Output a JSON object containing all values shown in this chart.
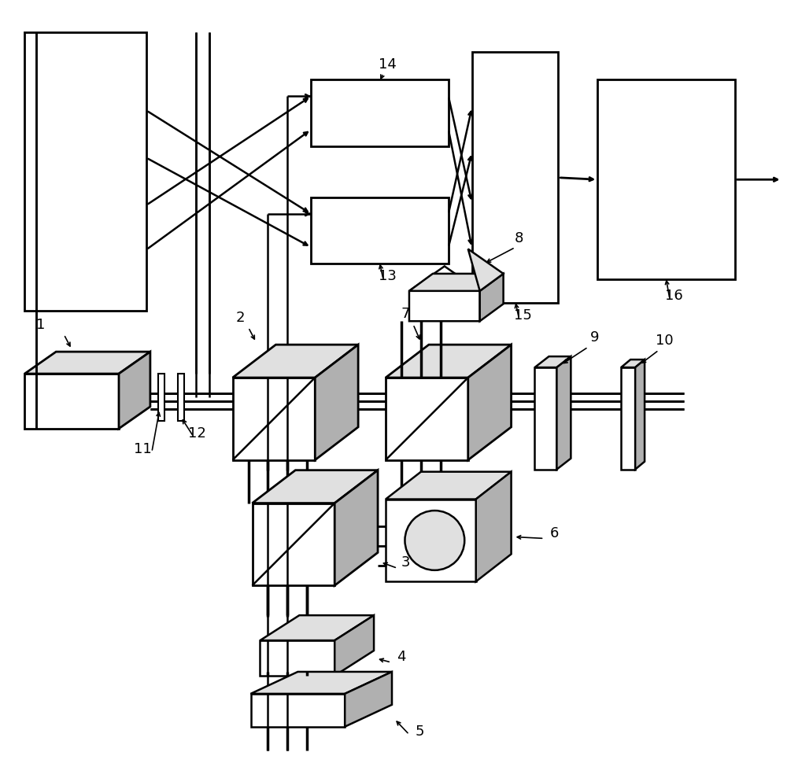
{
  "bg_color": "#ffffff",
  "line_color": "#000000",
  "label_fontsize": 13,
  "figsize": [
    10.0,
    9.75
  ],
  "dpi": 100
}
